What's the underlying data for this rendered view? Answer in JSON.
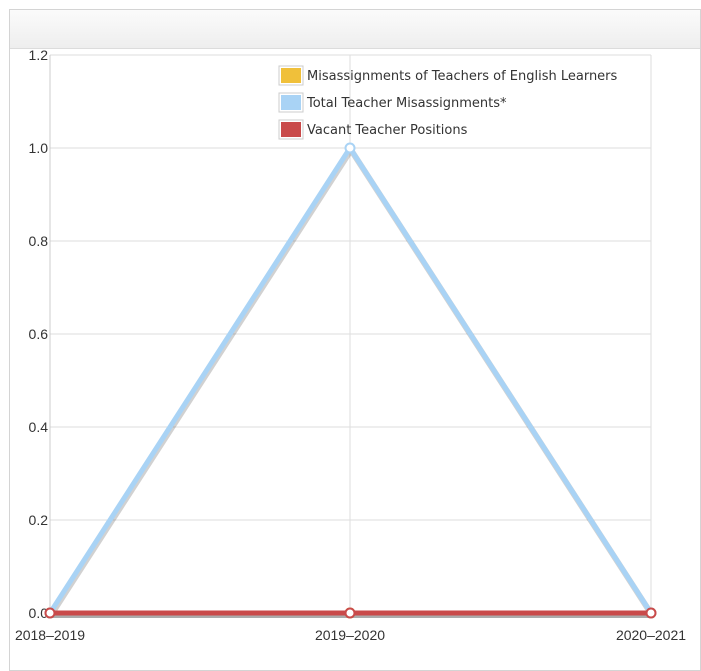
{
  "chart_data": {
    "type": "line",
    "categories": [
      "2018–2019",
      "2019–2020",
      "2020–2021"
    ],
    "series": [
      {
        "name": "Misassignments of Teachers of English Learners",
        "color": "#f0c03a",
        "values": [
          0,
          0,
          0
        ]
      },
      {
        "name": "Total Teacher Misassignments*",
        "color": "#a9d3f5",
        "values": [
          0,
          1,
          0
        ]
      },
      {
        "name": "Vacant Teacher Positions",
        "color": "#c94a4a",
        "values": [
          0,
          0,
          0
        ]
      }
    ],
    "y_ticks": [
      "0.0",
      "0.2",
      "0.4",
      "0.6",
      "0.8",
      "1.0",
      "1.2"
    ],
    "ylim": [
      0,
      1.2
    ],
    "grid": true,
    "legend_position": "top-center"
  }
}
